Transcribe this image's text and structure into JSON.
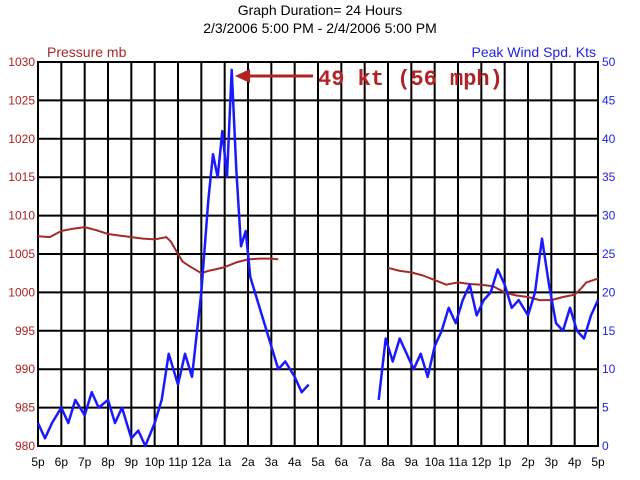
{
  "chart_data": {
    "type": "line",
    "title": "Graph Duration= 24 Hours",
    "subtitle": "2/3/2006 5:00 PM - 2/4/2006 5:00 PM",
    "left_axis": {
      "label": "Pressure mb",
      "ylim": [
        980,
        1030
      ],
      "ticks": [
        "980",
        "985",
        "990",
        "995",
        "1000",
        "1005",
        "1010",
        "1015",
        "1020",
        "1025",
        "1030"
      ],
      "color": "#b22222"
    },
    "right_axis": {
      "label": "Peak Wind Spd. Kts",
      "ylim": [
        0,
        50
      ],
      "ticks": [
        "0",
        "5",
        "10",
        "15",
        "20",
        "25",
        "30",
        "35",
        "40",
        "45",
        "50"
      ],
      "color": "#2222ee"
    },
    "x_axis": {
      "ticks": [
        "5p",
        "6p",
        "7p",
        "8p",
        "9p",
        "10p",
        "11p",
        "12a",
        "1a",
        "2a",
        "3a",
        "4a",
        "5a",
        "6a",
        "7a",
        "8a",
        "9a",
        "10a",
        "11a",
        "12p",
        "1p",
        "2p",
        "3p",
        "4p",
        "5p"
      ]
    },
    "grid": true,
    "annotation": "49 kt (56 mph)",
    "series": [
      {
        "name": "Pressure mb",
        "axis": "left",
        "color": "#a52a2a",
        "segments": [
          [
            [
              0,
              1007.3
            ],
            [
              0.5,
              1007.2
            ],
            [
              1,
              1008.0
            ],
            [
              1.5,
              1008.3
            ],
            [
              2,
              1008.5
            ],
            [
              2.5,
              1008.1
            ],
            [
              3,
              1007.6
            ],
            [
              3.5,
              1007.4
            ],
            [
              4,
              1007.2
            ],
            [
              4.5,
              1007.0
            ],
            [
              5,
              1006.9
            ],
            [
              5.5,
              1007.2
            ],
            [
              5.7,
              1006.6
            ],
            [
              6,
              1005.0
            ],
            [
              6.2,
              1004.0
            ],
            [
              6.5,
              1003.4
            ],
            [
              7,
              1002.5
            ],
            [
              7.3,
              1002.8
            ],
            [
              7.6,
              1003.0
            ],
            [
              8,
              1003.3
            ],
            [
              8.5,
              1003.9
            ],
            [
              9,
              1004.3
            ],
            [
              9.5,
              1004.4
            ],
            [
              10,
              1004.4
            ],
            [
              10.3,
              1004.3
            ]
          ],
          [
            [
              15,
              1003.2
            ],
            [
              15.5,
              1002.8
            ],
            [
              16,
              1002.6
            ],
            [
              16.5,
              1002.2
            ],
            [
              17,
              1001.6
            ],
            [
              17.5,
              1001.0
            ],
            [
              18,
              1001.3
            ],
            [
              18.5,
              1001.1
            ],
            [
              19,
              1001.0
            ],
            [
              19.5,
              1000.8
            ],
            [
              20,
              1000.0
            ],
            [
              20.5,
              999.6
            ],
            [
              21,
              999.4
            ],
            [
              21.5,
              999.0
            ],
            [
              22,
              999.0
            ],
            [
              22.5,
              999.4
            ],
            [
              23,
              999.7
            ],
            [
              23.3,
              1000.6
            ],
            [
              23.5,
              1001.3
            ],
            [
              24,
              1001.8
            ]
          ]
        ]
      },
      {
        "name": "Peak Wind Spd. Kts",
        "axis": "right",
        "color": "#1a1aff",
        "segments": [
          [
            [
              0,
              3
            ],
            [
              0.3,
              1
            ],
            [
              0.6,
              3
            ],
            [
              1,
              5
            ],
            [
              1.3,
              3
            ],
            [
              1.6,
              6
            ],
            [
              2,
              4
            ],
            [
              2.3,
              7
            ],
            [
              2.6,
              5
            ],
            [
              3,
              6
            ],
            [
              3.3,
              3
            ],
            [
              3.6,
              5
            ],
            [
              4,
              1
            ],
            [
              4.3,
              2
            ],
            [
              4.6,
              0
            ],
            [
              5,
              3
            ],
            [
              5.3,
              6
            ],
            [
              5.6,
              12
            ],
            [
              6,
              8
            ],
            [
              6.3,
              12
            ],
            [
              6.6,
              9
            ],
            [
              7,
              20
            ],
            [
              7.3,
              32
            ],
            [
              7.5,
              38
            ],
            [
              7.7,
              35
            ],
            [
              7.9,
              41
            ],
            [
              8.1,
              35
            ],
            [
              8.3,
              49
            ],
            [
              8.5,
              36
            ],
            [
              8.7,
              26
            ],
            [
              8.9,
              28
            ],
            [
              9.1,
              22
            ],
            [
              9.4,
              19
            ],
            [
              9.7,
              16
            ],
            [
              10,
              13
            ],
            [
              10.3,
              10
            ],
            [
              10.6,
              11
            ],
            [
              11,
              9
            ],
            [
              11.3,
              7
            ],
            [
              11.6,
              8
            ]
          ],
          [
            [
              14.6,
              6
            ],
            [
              14.9,
              14
            ],
            [
              15.2,
              11
            ],
            [
              15.5,
              14
            ],
            [
              15.8,
              12
            ],
            [
              16.1,
              10
            ],
            [
              16.4,
              12
            ],
            [
              16.7,
              9
            ],
            [
              17,
              13
            ],
            [
              17.3,
              15
            ],
            [
              17.6,
              18
            ],
            [
              17.9,
              16
            ],
            [
              18.2,
              19
            ],
            [
              18.5,
              21
            ],
            [
              18.8,
              17
            ],
            [
              19.1,
              19
            ],
            [
              19.4,
              20
            ],
            [
              19.7,
              23
            ],
            [
              20,
              21
            ],
            [
              20.3,
              18
            ],
            [
              20.6,
              19
            ],
            [
              21,
              17
            ],
            [
              21.3,
              20
            ],
            [
              21.6,
              27
            ],
            [
              21.9,
              21
            ],
            [
              22.2,
              16
            ],
            [
              22.5,
              15
            ],
            [
              22.8,
              18
            ],
            [
              23.1,
              15
            ],
            [
              23.4,
              14
            ],
            [
              23.7,
              17
            ],
            [
              24,
              19
            ]
          ]
        ]
      }
    ]
  }
}
